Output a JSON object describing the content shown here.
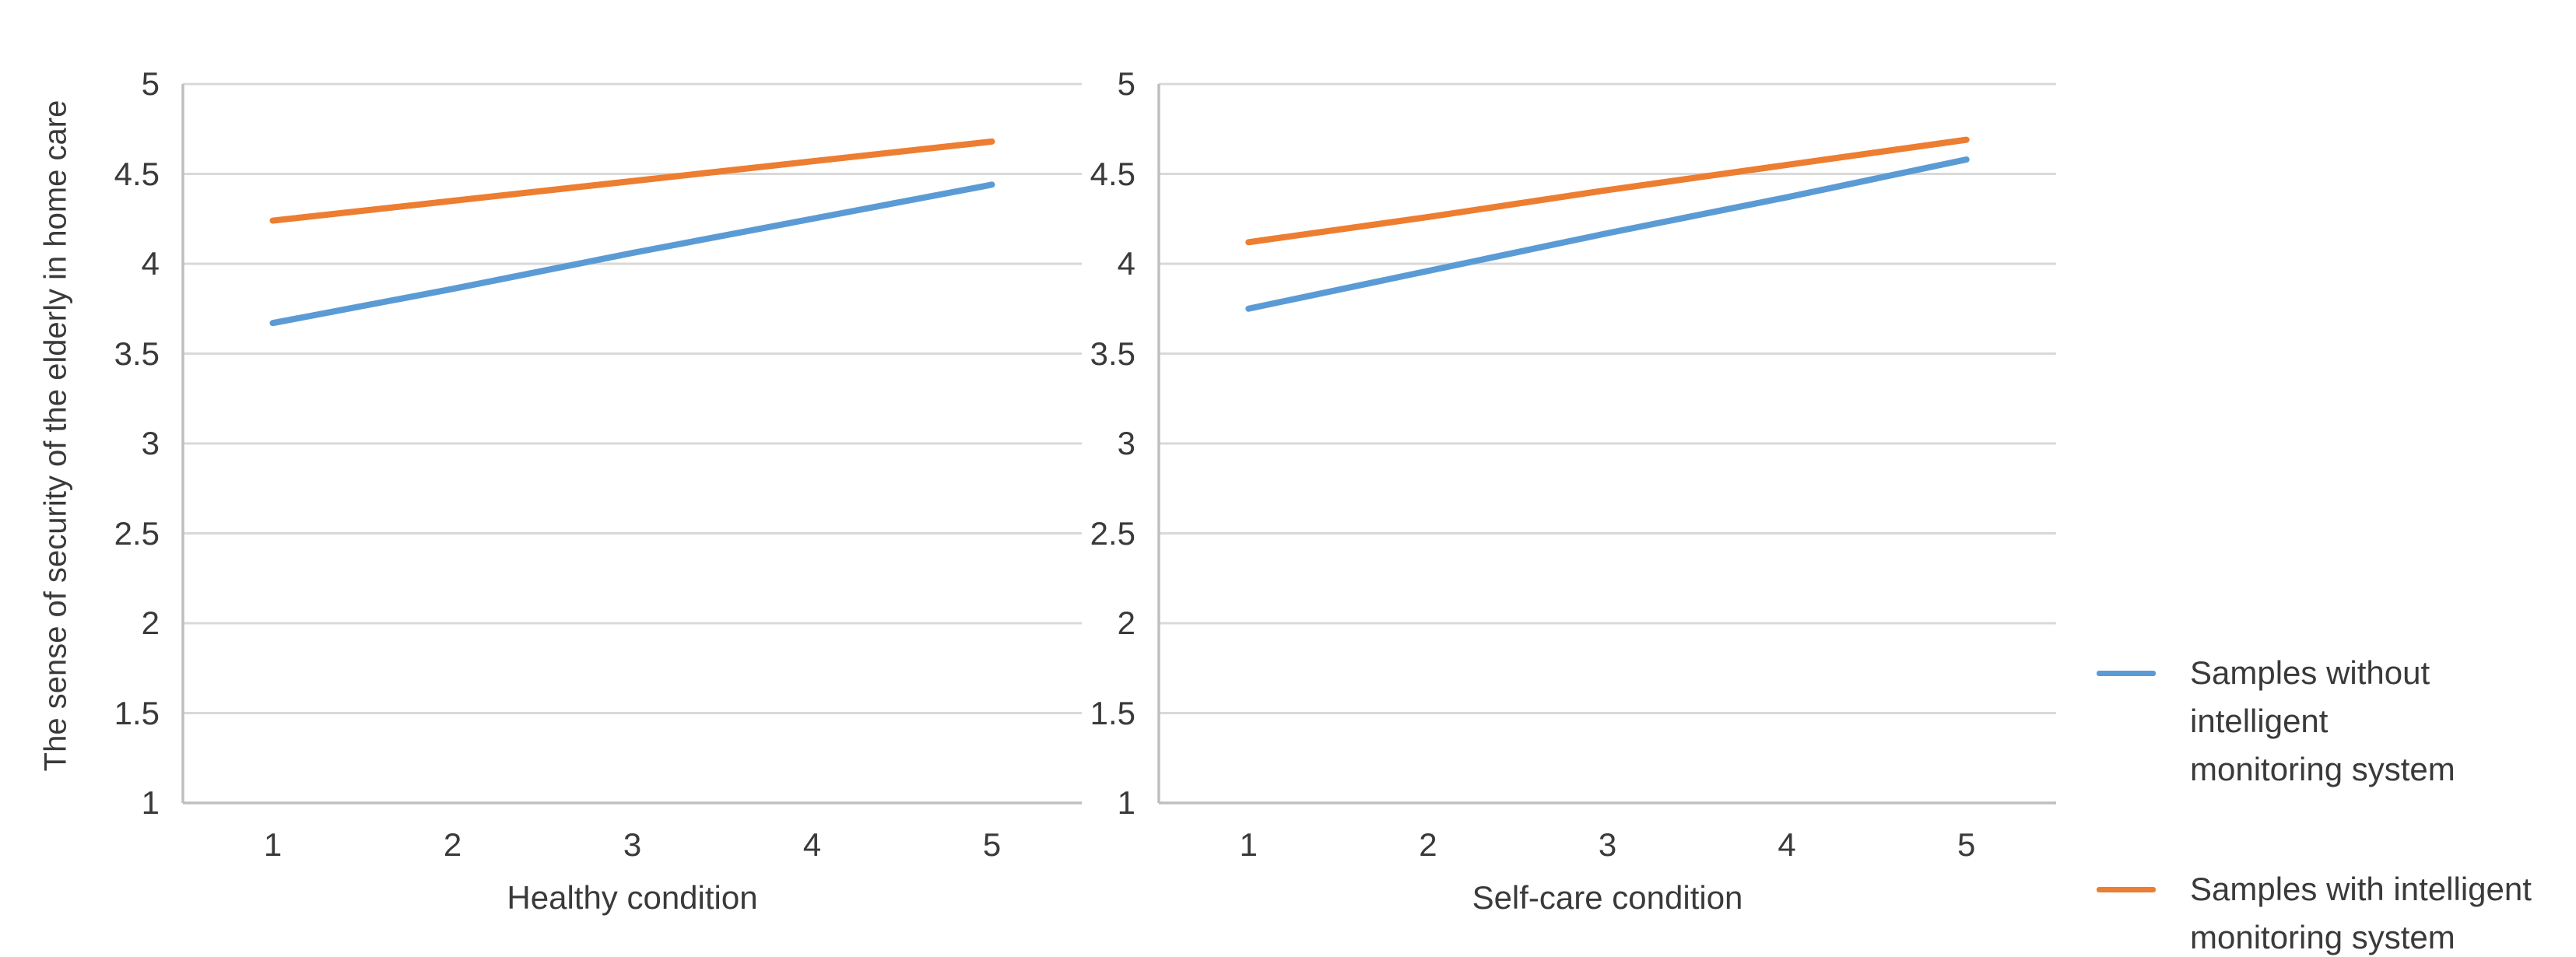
{
  "figure": {
    "y_axis_label": "The sense of security of the elderly in home care",
    "background_color": "#ffffff"
  },
  "colors": {
    "series_without_system": "#5b9bd5",
    "series_with_system": "#ed7d31",
    "gridline": "#d9d9d9",
    "axis_line": "#bfbfbf",
    "text": "#3a3a3a"
  },
  "legend": {
    "items": [
      {
        "name": "Samples without intelligent monitoring system",
        "lines": [
          "Samples without intelligent",
          "monitoring system"
        ],
        "color": "#5b9bd5"
      },
      {
        "name": "Samples with intelligent monitoring system",
        "lines": [
          "Samples with intelligent",
          "monitoring system"
        ],
        "color": "#ed7d31"
      }
    ]
  },
  "chart_data": [
    {
      "type": "line",
      "title": "",
      "xlabel": "Healthy condition",
      "ylabel": "The sense of security of the elderly in home care",
      "x": [
        1,
        2,
        3,
        4,
        5
      ],
      "ylim": [
        1,
        5
      ],
      "ytick_step": 0.5,
      "grid": true,
      "legend_position": "right-of-figure",
      "series": [
        {
          "name": "Samples without intelligent monitoring system",
          "color": "#5b9bd5",
          "values": [
            3.67,
            3.86,
            4.06,
            4.25,
            4.44
          ]
        },
        {
          "name": "Samples with intelligent monitoring system",
          "color": "#ed7d31",
          "values": [
            4.24,
            4.35,
            4.46,
            4.57,
            4.68
          ]
        }
      ]
    },
    {
      "type": "line",
      "title": "",
      "xlabel": "Self-care condition",
      "ylabel": "The sense of security of the elderly in home care",
      "x": [
        1,
        2,
        3,
        4,
        5
      ],
      "ylim": [
        1,
        5
      ],
      "ytick_step": 0.5,
      "grid": true,
      "legend_position": "right-of-figure",
      "series": [
        {
          "name": "Samples without intelligent monitoring system",
          "color": "#5b9bd5",
          "values": [
            3.75,
            3.96,
            4.17,
            4.37,
            4.58
          ]
        },
        {
          "name": "Samples with intelligent monitoring system",
          "color": "#ed7d31",
          "values": [
            4.12,
            4.26,
            4.41,
            4.55,
            4.69
          ]
        }
      ]
    }
  ]
}
